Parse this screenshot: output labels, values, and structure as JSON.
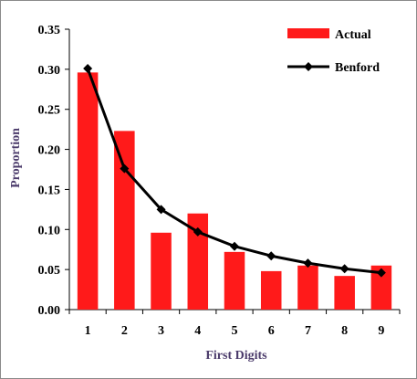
{
  "chart_data": {
    "type": "bar",
    "xlabel": "First Digits",
    "ylabel": "Proportion",
    "categories": [
      "1",
      "2",
      "3",
      "4",
      "5",
      "6",
      "7",
      "8",
      "9"
    ],
    "ylim": [
      0,
      0.35
    ],
    "yticks": [
      "0.00",
      "0.05",
      "0.10",
      "0.15",
      "0.20",
      "0.25",
      "0.30",
      "0.35"
    ],
    "series": [
      {
        "name": "Actual",
        "kind": "bar",
        "color": "#ff1a1a",
        "values": [
          0.296,
          0.223,
          0.096,
          0.12,
          0.072,
          0.048,
          0.055,
          0.042,
          0.055
        ]
      },
      {
        "name": "Benford",
        "kind": "line",
        "marker": "diamond",
        "color": "#000000",
        "values": [
          0.301,
          0.176,
          0.125,
          0.097,
          0.079,
          0.067,
          0.058,
          0.051,
          0.046
        ]
      }
    ],
    "legend_position": "top-right",
    "grid": false
  }
}
